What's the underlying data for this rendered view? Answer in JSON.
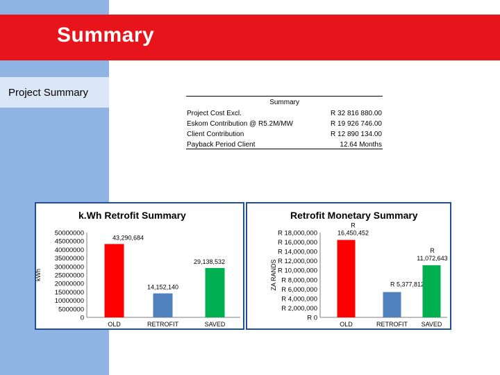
{
  "slide": {
    "title": "Summary",
    "subtitle": "Project Summary"
  },
  "summary_table": {
    "heading": "Summary",
    "rows": [
      {
        "label": "Project Cost Excl.",
        "value": "R 32 816 880.00"
      },
      {
        "label": "Eskom Contribution @ R5.2M/MW",
        "value": "R 19 926 746.00"
      },
      {
        "label": "Client Contribution",
        "value": "R 12 890 134.00"
      },
      {
        "label": "Payback Period Client",
        "value": "12.64 Months"
      }
    ]
  },
  "chart_data": [
    {
      "type": "bar",
      "title": "k.Wh Retrofit Summary",
      "ylabel": "kWh",
      "xlabel": "",
      "categories": [
        "OLD",
        "RETROFIT",
        "SAVED"
      ],
      "values": [
        43290684,
        14152140,
        29138532
      ],
      "data_labels": [
        "43,290,684",
        "14,152,140",
        "29,138,532"
      ],
      "colors": [
        "#ff0000",
        "#4f81bd",
        "#00b050"
      ],
      "ylim": [
        0,
        50000000
      ],
      "yticks": [
        "0",
        "5000000",
        "10000000",
        "15000000",
        "20000000",
        "25000000",
        "30000000",
        "35000000",
        "40000000",
        "45000000",
        "50000000"
      ],
      "grid": false,
      "legend": "none"
    },
    {
      "type": "bar",
      "title": "Retrofit Monetary Summary",
      "ylabel": "ZA RANDS",
      "xlabel": "",
      "categories": [
        "OLD",
        "RETROFIT",
        "SAVED"
      ],
      "values": [
        16450452,
        5377812,
        11072643
      ],
      "data_labels": [
        "R 16,450,452",
        "R 5,377,812",
        "R 11,072,643"
      ],
      "colors": [
        "#ff0000",
        "#4f81bd",
        "#00b050"
      ],
      "ylim": [
        0,
        18000000
      ],
      "yticks": [
        "R 0",
        "R 2,000,000",
        "R 4,000,000",
        "R 6,000,000",
        "R 8,000,000",
        "R 10,000,000",
        "R 12,000,000",
        "R 14,000,000",
        "R 16,000,000",
        "R 18,000,000"
      ],
      "grid": false,
      "legend": "none"
    }
  ]
}
